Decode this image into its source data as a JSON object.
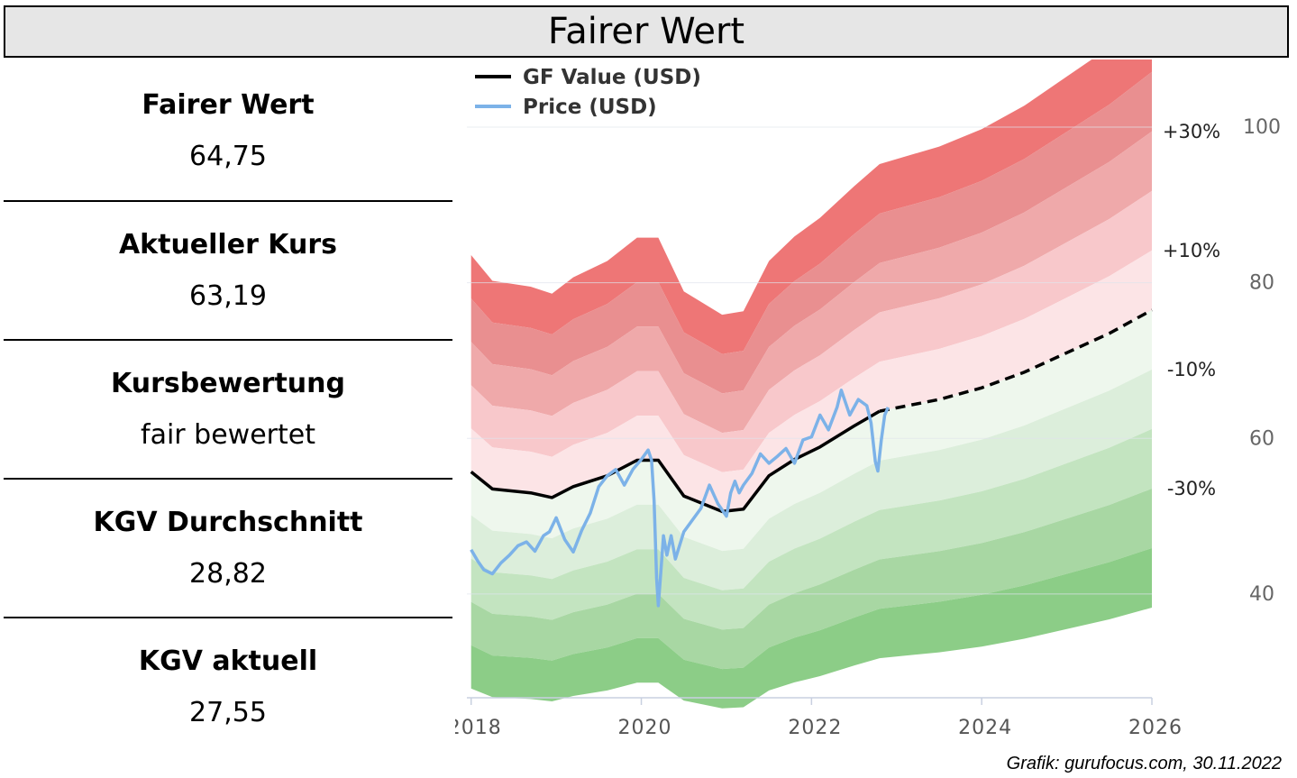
{
  "header": {
    "title": "Fairer Wert"
  },
  "metrics": [
    {
      "label": "Fairer Wert",
      "value": "64,75"
    },
    {
      "label": "Aktueller Kurs",
      "value": "63,19"
    },
    {
      "label": "Kursbewertung",
      "value": "fair bewertet"
    },
    {
      "label": "KGV Durchschnitt",
      "value": "28,82"
    },
    {
      "label": "KGV aktuell",
      "value": "27,55"
    }
  ],
  "credit": "Grafik: gurufocus.com, 30.11.2022",
  "colors": {
    "gf_value": "#000000",
    "price": "#7cb2e8",
    "red_bands": [
      "#fce4e6",
      "#f8c8cb",
      "#efa9aa",
      "#e98f90",
      "#ee7676"
    ],
    "green_bands": [
      "#eef7ed",
      "#dceedb",
      "#c3e4c0",
      "#a8d7a3",
      "#8ccd87",
      "#78c374"
    ]
  },
  "chart_data": {
    "type": "line",
    "title": "",
    "xlabel": "",
    "ylabel": "",
    "xlim": [
      2017.95,
      2026
    ],
    "ylim": [
      24,
      108
    ],
    "x_ticks": [
      2018,
      2020,
      2022,
      2024,
      2026
    ],
    "x_tick_labels": [
      "2018",
      "2020",
      "2022",
      "2024",
      "2026"
    ],
    "y_ticks": [
      40,
      60,
      80,
      100
    ],
    "y_tick_labels": [
      "40",
      "60",
      "80",
      "100"
    ],
    "grid": true,
    "legend": {
      "position": "top-left",
      "entries": [
        "GF Value (USD)",
        "Price (USD)"
      ]
    },
    "band_labels": [
      "+30%",
      "+10%",
      "-10%",
      "-30%"
    ],
    "band_multipliers": [
      1.3,
      1.2,
      1.1,
      1.0,
      0.9,
      0.8,
      0.7,
      0.6
    ],
    "series": [
      {
        "name": "GF Value (USD)",
        "style": "solid-then-dashed",
        "projection_start": 2022.8,
        "x": [
          2018.0,
          2018.25,
          2018.7,
          2018.95,
          2019.2,
          2019.6,
          2019.95,
          2020.2,
          2020.5,
          2020.95,
          2021.2,
          2021.5,
          2021.8,
          2022.1,
          2022.5,
          2022.8,
          2023.5,
          2024.0,
          2024.5,
          2025.0,
          2025.5,
          2026.0
        ],
        "y": [
          55.7,
          53.5,
          53.0,
          52.4,
          53.8,
          55.2,
          57.2,
          57.2,
          52.6,
          50.6,
          50.9,
          55.2,
          57.3,
          58.9,
          61.6,
          63.5,
          65.0,
          66.5,
          68.5,
          71.0,
          73.5,
          76.5
        ]
      },
      {
        "name": "Price (USD)",
        "style": "solid",
        "x": [
          2018.0,
          2018.08,
          2018.15,
          2018.25,
          2018.35,
          2018.45,
          2018.55,
          2018.65,
          2018.75,
          2018.85,
          2018.92,
          2019.0,
          2019.1,
          2019.2,
          2019.3,
          2019.4,
          2019.5,
          2019.6,
          2019.7,
          2019.8,
          2019.9,
          2020.0,
          2020.08,
          2020.12,
          2020.15,
          2020.18,
          2020.2,
          2020.23,
          2020.26,
          2020.3,
          2020.35,
          2020.4,
          2020.5,
          2020.6,
          2020.7,
          2020.8,
          2020.9,
          2021.0,
          2021.05,
          2021.1,
          2021.15,
          2021.2,
          2021.3,
          2021.4,
          2021.5,
          2021.6,
          2021.7,
          2021.8,
          2021.9,
          2022.0,
          2022.1,
          2022.2,
          2022.3,
          2022.35,
          2022.45,
          2022.55,
          2022.65,
          2022.7,
          2022.75,
          2022.78,
          2022.82,
          2022.86,
          2022.9
        ],
        "y": [
          45.7,
          44.2,
          43.1,
          42.6,
          44.0,
          45.0,
          46.2,
          46.7,
          45.5,
          47.5,
          48.0,
          49.8,
          47.0,
          45.4,
          48.2,
          50.4,
          53.8,
          55.2,
          56.0,
          54.0,
          56.0,
          57.3,
          58.5,
          57.2,
          52.0,
          42.0,
          38.5,
          43.0,
          47.5,
          45.0,
          47.5,
          44.5,
          48.0,
          49.5,
          51.0,
          54.0,
          51.6,
          50.0,
          53.0,
          54.5,
          53.0,
          54.0,
          55.5,
          58.0,
          56.8,
          57.7,
          58.7,
          56.8,
          59.8,
          60.2,
          63.0,
          61.1,
          64.0,
          66.2,
          63.0,
          65.0,
          64.2,
          62.0,
          57.0,
          55.8,
          59.8,
          63.0,
          64.0
        ]
      }
    ]
  }
}
